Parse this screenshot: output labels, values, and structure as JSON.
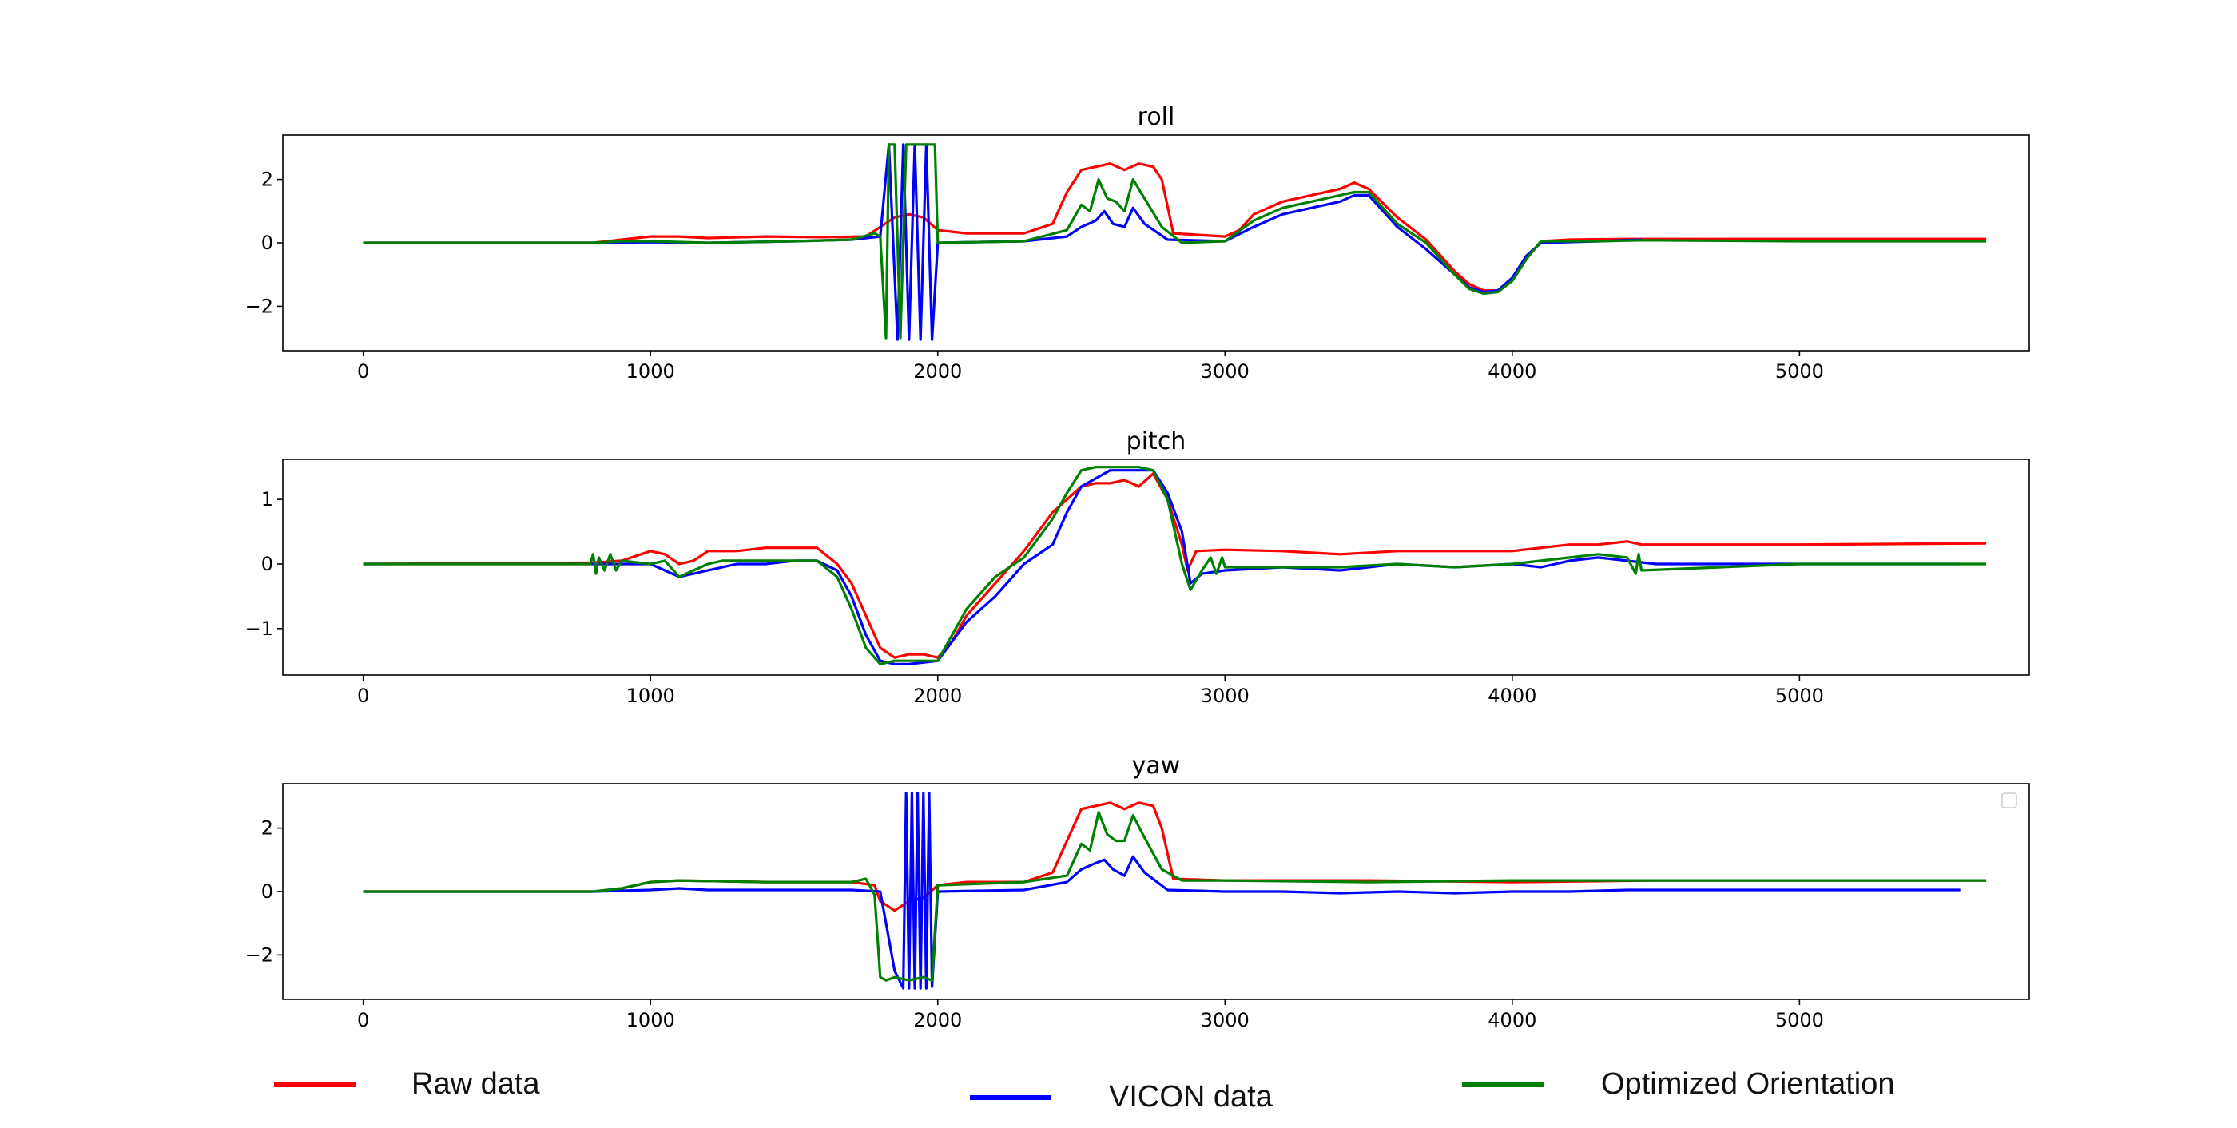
{
  "colors": {
    "raw": "#ff0000",
    "vicon": "#0000ff",
    "optimized": "#008000"
  },
  "legend": [
    {
      "label": "Raw data",
      "color": "#ff0000"
    },
    {
      "label": "VICON data",
      "color": "#0000ff"
    },
    {
      "label": "Optimized Orientation",
      "color": "#008000"
    }
  ],
  "chart_data": [
    {
      "type": "line",
      "title": "roll",
      "xlim": [
        -280,
        5800
      ],
      "ylim": [
        -3.4,
        3.4
      ],
      "xticks": [
        0,
        1000,
        2000,
        3000,
        4000,
        5000
      ],
      "yticks": [
        -2,
        0,
        2
      ],
      "series": [
        {
          "name": "Raw data",
          "color": "#ff0000",
          "x": [
            0,
            800,
            900,
            1000,
            1100,
            1200,
            1400,
            1600,
            1750,
            1850,
            1900,
            1950,
            2000,
            2100,
            2300,
            2400,
            2450,
            2500,
            2550,
            2600,
            2650,
            2700,
            2750,
            2780,
            2820,
            3000,
            3050,
            3100,
            3200,
            3300,
            3400,
            3450,
            3500,
            3600,
            3700,
            3800,
            3850,
            3900,
            3950,
            4000,
            4050,
            4100,
            4200,
            4400,
            4600,
            5000,
            5650
          ],
          "y": [
            0,
            0,
            0.1,
            0.2,
            0.2,
            0.15,
            0.2,
            0.18,
            0.2,
            0.8,
            0.9,
            0.8,
            0.4,
            0.3,
            0.3,
            0.6,
            1.6,
            2.3,
            2.4,
            2.5,
            2.3,
            2.5,
            2.4,
            2.0,
            0.3,
            0.2,
            0.4,
            0.9,
            1.3,
            1.5,
            1.7,
            1.9,
            1.7,
            0.8,
            0.1,
            -0.9,
            -1.3,
            -1.5,
            -1.5,
            -1.2,
            -0.5,
            0.05,
            0.1,
            0.12,
            0.12,
            0.12,
            0.12
          ]
        },
        {
          "name": "VICON data",
          "color": "#0000ff",
          "x": [
            0,
            800,
            1000,
            1200,
            1500,
            1700,
            1800,
            1830,
            1860,
            1880,
            1900,
            1920,
            1940,
            1960,
            1980,
            2000,
            2300,
            2450,
            2500,
            2550,
            2580,
            2610,
            2650,
            2680,
            2720,
            2800,
            3000,
            3100,
            3200,
            3300,
            3400,
            3450,
            3500,
            3600,
            3700,
            3800,
            3850,
            3900,
            3950,
            4000,
            4050,
            4100,
            4300,
            4450
          ],
          "y": [
            0,
            0,
            0.02,
            0,
            0.05,
            0.1,
            0.2,
            3.1,
            -3.05,
            3.1,
            -3.05,
            3.1,
            -3.05,
            3.1,
            -3.05,
            0.0,
            0.05,
            0.2,
            0.5,
            0.7,
            1.0,
            0.6,
            0.5,
            1.1,
            0.6,
            0.1,
            0.05,
            0.5,
            0.9,
            1.1,
            1.3,
            1.5,
            1.5,
            0.5,
            -0.2,
            -1.0,
            -1.4,
            -1.55,
            -1.5,
            -1.1,
            -0.4,
            0.0,
            0.05,
            0.1
          ]
        },
        {
          "name": "Optimized Orientation",
          "color": "#008000",
          "x": [
            0,
            800,
            900,
            1000,
            1200,
            1500,
            1700,
            1780,
            1800,
            1820,
            1830,
            1850,
            1870,
            1890,
            1910,
            1930,
            1950,
            1970,
            1990,
            2000,
            2300,
            2450,
            2500,
            2530,
            2560,
            2590,
            2620,
            2650,
            2680,
            2720,
            2780,
            2850,
            3000,
            3100,
            3200,
            3300,
            3400,
            3450,
            3500,
            3600,
            3700,
            3800,
            3850,
            3900,
            3950,
            4000,
            4050,
            4100,
            4300,
            4450,
            5000,
            5650
          ],
          "y": [
            0,
            0,
            0.05,
            0.05,
            0,
            0.05,
            0.1,
            0.3,
            0.2,
            -3.0,
            3.1,
            3.1,
            -3.0,
            3.1,
            3.1,
            3.1,
            3.1,
            3.1,
            3.1,
            0.0,
            0.05,
            0.4,
            1.2,
            1.0,
            2.0,
            1.4,
            1.3,
            1.0,
            2.0,
            1.4,
            0.5,
            0.0,
            0.05,
            0.7,
            1.1,
            1.3,
            1.5,
            1.6,
            1.6,
            0.6,
            0.0,
            -1.0,
            -1.45,
            -1.6,
            -1.55,
            -1.2,
            -0.5,
            0.05,
            0.05,
            0.08,
            0.05,
            0.05
          ]
        }
      ]
    },
    {
      "type": "line",
      "title": "pitch",
      "xlim": [
        -280,
        5800
      ],
      "ylim": [
        -1.72,
        1.62
      ],
      "xticks": [
        0,
        1000,
        2000,
        3000,
        4000,
        5000
      ],
      "yticks": [
        -1,
        0,
        1
      ],
      "series": [
        {
          "name": "Raw data",
          "color": "#ff0000",
          "x": [
            0,
            800,
            900,
            1000,
            1050,
            1100,
            1150,
            1200,
            1250,
            1300,
            1400,
            1500,
            1580,
            1650,
            1700,
            1750,
            1800,
            1850,
            1900,
            1950,
            2000,
            2050,
            2100,
            2200,
            2300,
            2400,
            2500,
            2550,
            2600,
            2650,
            2700,
            2750,
            2800,
            2850,
            2870,
            2900,
            3000,
            3200,
            3400,
            3600,
            3800,
            4000,
            4100,
            4200,
            4300,
            4400,
            4450,
            5000,
            5650
          ],
          "y": [
            0,
            0.02,
            0.05,
            0.2,
            0.15,
            0.0,
            0.05,
            0.2,
            0.2,
            0.2,
            0.25,
            0.25,
            0.25,
            0.0,
            -0.3,
            -0.8,
            -1.3,
            -1.45,
            -1.4,
            -1.4,
            -1.45,
            -1.2,
            -0.8,
            -0.3,
            0.2,
            0.8,
            1.2,
            1.25,
            1.25,
            1.3,
            1.2,
            1.4,
            1.0,
            0.3,
            -0.1,
            0.2,
            0.22,
            0.2,
            0.15,
            0.2,
            0.2,
            0.2,
            0.25,
            0.3,
            0.3,
            0.35,
            0.3,
            0.3,
            0.32
          ]
        },
        {
          "name": "VICON data",
          "color": "#0000ff",
          "x": [
            0,
            800,
            1000,
            1100,
            1200,
            1300,
            1400,
            1500,
            1580,
            1650,
            1700,
            1750,
            1800,
            1850,
            1900,
            2000,
            2050,
            2100,
            2200,
            2300,
            2400,
            2450,
            2500,
            2600,
            2700,
            2750,
            2800,
            2850,
            2880,
            2920,
            3000,
            3200,
            3400,
            3600,
            3800,
            4000,
            4100,
            4200,
            4300,
            4400,
            4500,
            5000,
            5560
          ],
          "y": [
            0,
            0,
            0,
            -0.2,
            -0.1,
            0.0,
            0.0,
            0.05,
            0.05,
            -0.1,
            -0.5,
            -1.1,
            -1.5,
            -1.55,
            -1.55,
            -1.5,
            -1.2,
            -0.9,
            -0.5,
            0.0,
            0.3,
            0.8,
            1.2,
            1.45,
            1.45,
            1.45,
            1.1,
            0.5,
            -0.3,
            -0.15,
            -0.1,
            -0.05,
            -0.1,
            0.0,
            -0.05,
            0.0,
            -0.05,
            0.05,
            0.1,
            0.05,
            0.0,
            0.0,
            0.0
          ]
        },
        {
          "name": "Optimized Orientation",
          "color": "#008000",
          "x": [
            0,
            790,
            800,
            810,
            820,
            840,
            860,
            880,
            900,
            1000,
            1050,
            1100,
            1150,
            1200,
            1250,
            1300,
            1400,
            1500,
            1580,
            1650,
            1700,
            1750,
            1800,
            1850,
            1900,
            2000,
            2050,
            2100,
            2200,
            2300,
            2400,
            2450,
            2500,
            2550,
            2600,
            2700,
            2750,
            2800,
            2850,
            2880,
            2920,
            2950,
            2970,
            2990,
            3000,
            3200,
            3400,
            3600,
            3800,
            4000,
            4100,
            4200,
            4300,
            4400,
            4430,
            4440,
            4450,
            5000,
            5650
          ],
          "y": [
            0,
            0,
            0.15,
            -0.15,
            0.1,
            -0.1,
            0.15,
            -0.1,
            0.05,
            0.0,
            0.05,
            -0.2,
            -0.1,
            0.0,
            0.05,
            0.05,
            0.05,
            0.05,
            0.05,
            -0.2,
            -0.7,
            -1.3,
            -1.55,
            -1.5,
            -1.5,
            -1.5,
            -1.1,
            -0.7,
            -0.2,
            0.1,
            0.7,
            1.1,
            1.45,
            1.5,
            1.5,
            1.5,
            1.45,
            1.0,
            0.0,
            -0.4,
            -0.1,
            0.1,
            -0.15,
            0.1,
            -0.05,
            -0.05,
            -0.05,
            0.0,
            -0.05,
            0.0,
            0.05,
            0.1,
            0.15,
            0.1,
            -0.15,
            0.15,
            -0.1,
            0.0,
            0.0
          ]
        }
      ]
    },
    {
      "type": "line",
      "title": "yaw",
      "xlim": [
        -280,
        5800
      ],
      "ylim": [
        -3.4,
        3.4
      ],
      "xticks": [
        0,
        1000,
        2000,
        3000,
        4000,
        5000
      ],
      "yticks": [
        -2,
        0,
        2
      ],
      "series": [
        {
          "name": "Raw data",
          "color": "#ff0000",
          "x": [
            0,
            800,
            900,
            1000,
            1100,
            1400,
            1700,
            1780,
            1800,
            1850,
            1900,
            1950,
            2000,
            2100,
            2300,
            2400,
            2450,
            2500,
            2550,
            2600,
            2650,
            2700,
            2750,
            2780,
            2820,
            3000,
            3500,
            4000,
            4500,
            5000,
            5650
          ],
          "y": [
            0,
            0,
            0.1,
            0.3,
            0.35,
            0.3,
            0.3,
            0.2,
            -0.3,
            -0.6,
            -0.3,
            -0.2,
            0.2,
            0.3,
            0.3,
            0.6,
            1.6,
            2.6,
            2.7,
            2.8,
            2.6,
            2.8,
            2.7,
            2.0,
            0.4,
            0.35,
            0.35,
            0.3,
            0.35,
            0.35,
            0.35
          ]
        },
        {
          "name": "VICON data",
          "color": "#0000ff",
          "x": [
            0,
            800,
            1000,
            1100,
            1200,
            1500,
            1700,
            1800,
            1850,
            1880,
            1890,
            1900,
            1910,
            1920,
            1930,
            1940,
            1950,
            1960,
            1970,
            1980,
            2000,
            2300,
            2450,
            2500,
            2550,
            2580,
            2610,
            2650,
            2680,
            2720,
            2800,
            3000,
            3200,
            3400,
            3600,
            3800,
            4000,
            4200,
            4400,
            4600,
            5000,
            5560
          ],
          "y": [
            0,
            0,
            0.05,
            0.1,
            0.05,
            0.05,
            0.05,
            0.0,
            -2.5,
            -3.05,
            3.1,
            -3.05,
            3.1,
            -3.05,
            3.1,
            -3.05,
            3.1,
            -3.05,
            3.1,
            -3.0,
            0.0,
            0.05,
            0.3,
            0.7,
            0.9,
            1.0,
            0.7,
            0.5,
            1.1,
            0.6,
            0.05,
            0.0,
            0.0,
            -0.05,
            0.0,
            -0.05,
            0.0,
            0.0,
            0.05,
            0.05,
            0.05,
            0.05
          ]
        },
        {
          "name": "Optimized Orientation",
          "color": "#008000",
          "x": [
            0,
            800,
            900,
            1000,
            1100,
            1400,
            1700,
            1750,
            1780,
            1800,
            1820,
            1850,
            1900,
            1950,
            1980,
            2000,
            2300,
            2450,
            2500,
            2530,
            2560,
            2590,
            2620,
            2650,
            2680,
            2720,
            2780,
            2850,
            3000,
            3500,
            4000,
            4500,
            5000,
            5650
          ],
          "y": [
            0,
            0,
            0.1,
            0.3,
            0.35,
            0.3,
            0.3,
            0.4,
            -0.1,
            -2.7,
            -2.8,
            -2.7,
            -2.8,
            -2.7,
            -2.8,
            0.2,
            0.3,
            0.5,
            1.5,
            1.3,
            2.5,
            1.8,
            1.6,
            1.6,
            2.4,
            1.7,
            0.7,
            0.35,
            0.35,
            0.3,
            0.35,
            0.35,
            0.35,
            0.35
          ]
        }
      ]
    }
  ]
}
